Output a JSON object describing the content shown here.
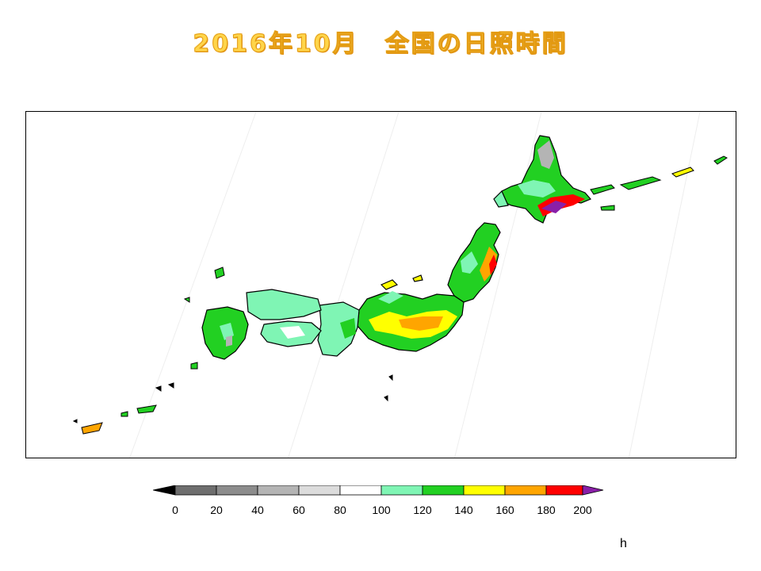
{
  "title": "2016年10月　全国の日照時間",
  "map": {
    "region": "Japan",
    "variable": "sunshine duration"
  },
  "legend": {
    "unit": "h",
    "ticks": [
      "0",
      "20",
      "40",
      "60",
      "80",
      "100",
      "120",
      "140",
      "160",
      "180",
      "200"
    ],
    "classes": [
      {
        "range": "<0",
        "color": "#000000"
      },
      {
        "range": "0-20",
        "color": "#6e6e6e"
      },
      {
        "range": "20-40",
        "color": "#8c8c8c"
      },
      {
        "range": "40-60",
        "color": "#b4b4b4"
      },
      {
        "range": "60-80",
        "color": "#dcdcdc"
      },
      {
        "range": "80-100",
        "color": "#ffffff"
      },
      {
        "range": "100-120",
        "color": "#7ff5b4"
      },
      {
        "range": "120-140",
        "color": "#22d022"
      },
      {
        "range": "140-160",
        "color": "#ffff00"
      },
      {
        "range": "160-180",
        "color": "#ffa500"
      },
      {
        "range": "180-200",
        "color": "#ff0000"
      },
      {
        "range": ">200",
        "color": "#8a1fa8"
      }
    ]
  }
}
